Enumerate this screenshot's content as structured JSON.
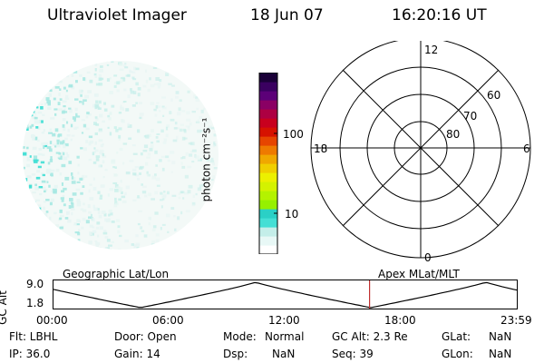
{
  "header": {
    "title": "Ultraviolet Imager",
    "date": "18 Jun 07",
    "time": "16:20:16 UT"
  },
  "colorbar": {
    "unit_label": "photon cm⁻²s⁻¹",
    "tick_labels": [
      "100",
      "10"
    ],
    "colors": [
      "#ffffff",
      "#e8f8f6",
      "#c4eee9",
      "#44dfd5",
      "#2ad0c6",
      "#96f000",
      "#b4f200",
      "#d4f200",
      "#ecf000",
      "#f0cf00",
      "#f0a800",
      "#ee7a00",
      "#e64500",
      "#d61200",
      "#c8001e",
      "#ad0042",
      "#8a0064",
      "#5c0078",
      "#3a0060",
      "#1a0038"
    ]
  },
  "polar_plot": {
    "mlt_labels": {
      "top": "12",
      "left": "18",
      "right": "6",
      "bottom": "0"
    },
    "lat_labels": [
      "60",
      "70",
      "80"
    ]
  },
  "orbit_plot": {
    "left_title": "Geographic Lat/Lon",
    "right_title": "Apex MLat/MLT",
    "axis_label": "GC Alt",
    "y_ticks": [
      "9.0",
      "1.8"
    ],
    "x_ticks": [
      "00:00",
      "06:00",
      "12:00",
      "18:00",
      "23:59"
    ],
    "current_time_hours": 16.34,
    "altitude_curve_color": "#000000",
    "marker_color": "#c03030"
  },
  "info": {
    "flt": "Flt: LBHL",
    "door": "Door: Open",
    "mode_label": "Mode:",
    "mode_value": "Normal",
    "gc_alt": "GC Alt: 2.3 Re",
    "glat_label": "GLat:",
    "glat_value": "NaN",
    "ip": "IP: 36.0",
    "gain": "Gain: 14",
    "dsp_label": "Dsp:",
    "dsp_value": "NaN",
    "seq": "Seq: 39",
    "glon_label": "GLon:",
    "glon_value": "NaN"
  },
  "earth_disk": {
    "base_color": "#f3f9f7",
    "speckle_colors": [
      "#c4eee9",
      "#a6e8e2",
      "#44dfd5",
      "#e6f5f3"
    ]
  }
}
